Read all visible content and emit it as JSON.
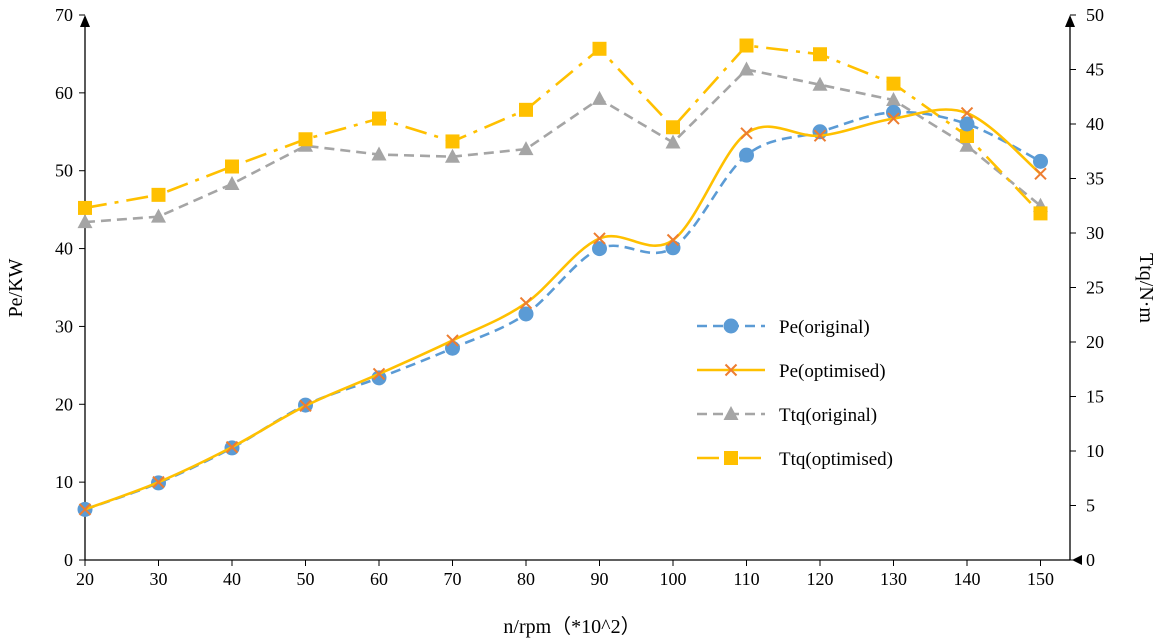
{
  "chart_data": {
    "type": "line",
    "x": [
      20,
      30,
      40,
      50,
      60,
      70,
      80,
      90,
      100,
      110,
      120,
      130,
      140,
      150
    ],
    "xlabel": "n/rpm（*10^2）",
    "xlim": [
      20,
      150
    ],
    "xticks": [
      "20",
      "30",
      "40",
      "50",
      "60",
      "70",
      "80",
      "90",
      "100",
      "110",
      "120",
      "130",
      "140",
      "150"
    ],
    "ylabel_left": "Pe/KW",
    "ylim_left": [
      0,
      70
    ],
    "yticks_left": [
      "0",
      "10",
      "20",
      "30",
      "40",
      "50",
      "60",
      "70"
    ],
    "ylabel_right": "Ttq/N·m",
    "ylim_right": [
      0,
      50
    ],
    "yticks_right": [
      "0",
      "5",
      "10",
      "15",
      "20",
      "25",
      "30",
      "35",
      "40",
      "45",
      "50"
    ],
    "grid": false,
    "legend_position": "center-right",
    "series": [
      {
        "name": "Pe(original)",
        "axis": "left",
        "color": "#5B9BD5",
        "line_style": "dashed",
        "marker": "circle",
        "smooth": true,
        "values": [
          6.5,
          9.9,
          14.4,
          19.9,
          23.4,
          27.2,
          31.6,
          40.0,
          40.1,
          52.0,
          55.0,
          57.5,
          56.0,
          51.2
        ]
      },
      {
        "name": "Pe(optimised)",
        "axis": "left",
        "color": "#FFC000",
        "marker_color": "#ED7D31",
        "line_style": "solid",
        "marker": "x",
        "smooth": true,
        "values": [
          6.5,
          10.0,
          14.5,
          19.8,
          23.9,
          28.2,
          33.0,
          41.3,
          41.1,
          54.8,
          54.5,
          56.7,
          57.4,
          49.6
        ]
      },
      {
        "name": "Ttq(original)",
        "axis": "right",
        "color": "#A5A5A5",
        "line_style": "dashed",
        "marker": "triangle",
        "smooth": false,
        "values": [
          31.0,
          31.5,
          34.5,
          38.0,
          37.2,
          37.0,
          37.7,
          42.3,
          38.3,
          45.0,
          43.6,
          42.2,
          38.0,
          32.5
        ]
      },
      {
        "name": "Ttq(optimised)",
        "axis": "right",
        "color": "#FFC000",
        "line_style": "dashdot",
        "marker": "square",
        "smooth": false,
        "values": [
          32.3,
          33.5,
          36.1,
          38.6,
          40.5,
          38.4,
          41.3,
          46.9,
          39.7,
          47.2,
          46.4,
          43.7,
          38.9,
          31.8
        ]
      }
    ]
  }
}
